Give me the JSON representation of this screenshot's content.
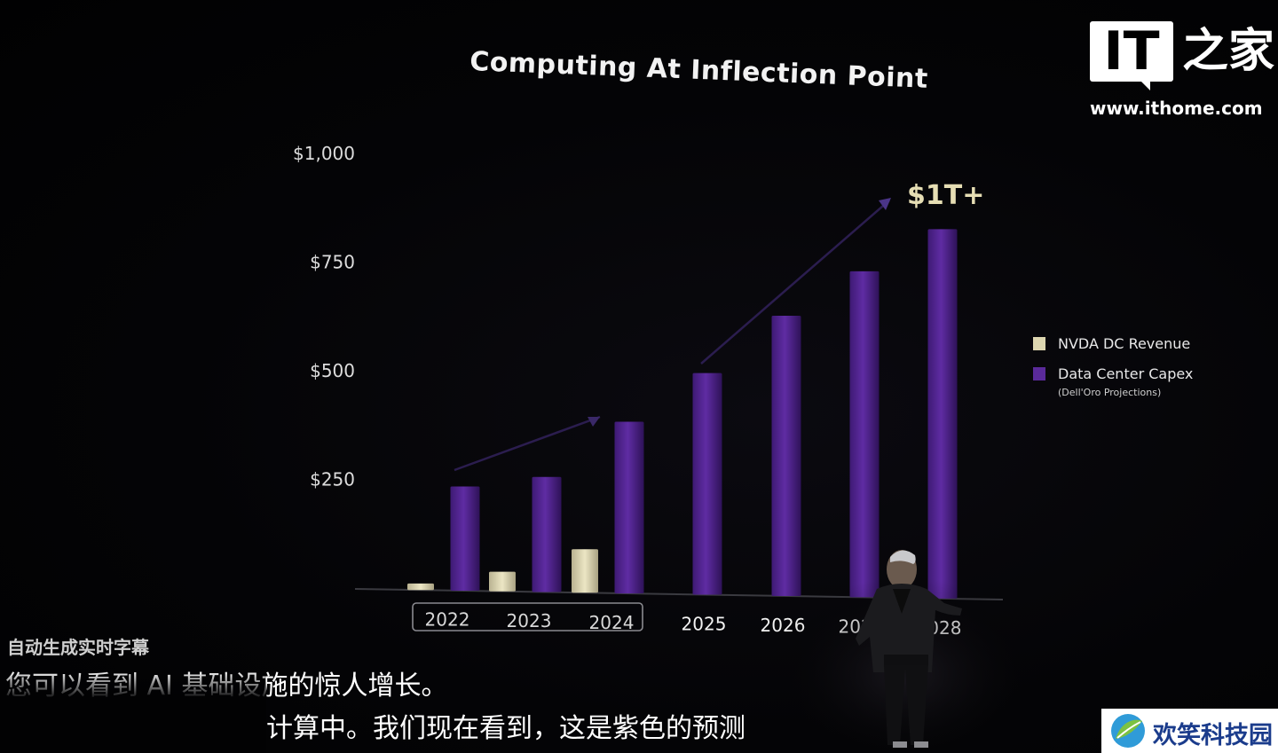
{
  "chart_data": {
    "type": "bar",
    "title": "Computing At Inflection Point",
    "y_tick_labels": [
      "$1,000",
      "$750",
      "$500",
      "$250"
    ],
    "y_ticks": [
      1000,
      750,
      500,
      250
    ],
    "ylim": [
      0,
      1000
    ],
    "categories": [
      "2022",
      "2023",
      "2024",
      "2025",
      "2026",
      "2027",
      "2028"
    ],
    "highlighted_categories": [
      "2022",
      "2023",
      "2024"
    ],
    "series": [
      {
        "name": "NVDA DC Revenue",
        "color": "#ddd6b0",
        "values": [
          15,
          45,
          100,
          null,
          null,
          null,
          null
        ]
      },
      {
        "name": "Data Center Capex",
        "color": "#5a2a9a",
        "values": [
          240,
          265,
          395,
          510,
          645,
          750,
          850
        ]
      }
    ],
    "annotation": "$1T+",
    "legend_note": "(Dell'Oro Projections)",
    "legend_position": "right",
    "grid": false
  },
  "logo": {
    "it": "IT",
    "home": "之家",
    "url": "www.ithome.com"
  },
  "captions": {
    "label": "自动生成实时字幕",
    "line1": "您可以看到 AI 基础设施的惊人增长。",
    "line2": "计算中。我们现在看到，这是紫色的预测"
  },
  "watermark": {
    "text": "欢笑科技园"
  }
}
